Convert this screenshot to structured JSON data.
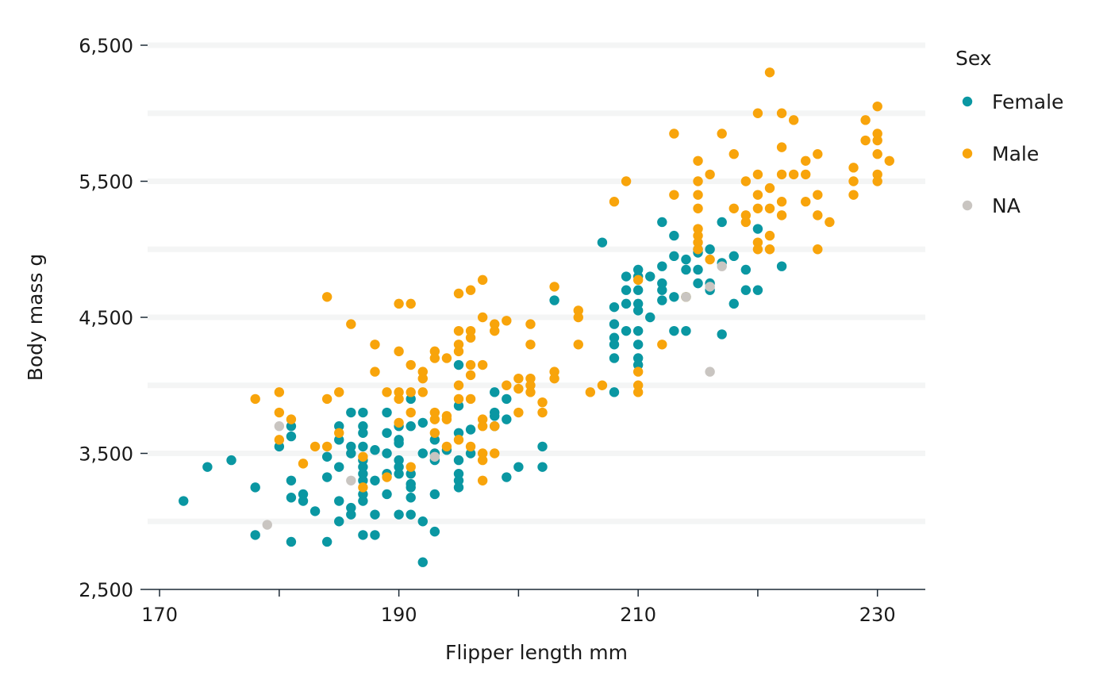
{
  "colors": {
    "Female": "#0a97a2",
    "Male": "#f8a40b",
    "NA": "#c9c5c1"
  },
  "chart_data": {
    "type": "scatter",
    "title": "",
    "xlabel": "Flipper length mm",
    "ylabel": "Body mass g",
    "xlim": [
      169,
      234
    ],
    "ylim": [
      2500,
      6500
    ],
    "x_ticks": [
      170,
      190,
      210,
      230
    ],
    "x_tick_labels": [
      "170",
      "190",
      "210",
      "230"
    ],
    "x_minor_ticks": [
      180,
      200,
      220
    ],
    "y_ticks": [
      2500,
      3500,
      4500,
      5500,
      6500
    ],
    "y_tick_labels": [
      "2,500",
      "3,500",
      "4,500",
      "5,500",
      "6,500"
    ],
    "y_gridlines": [
      3000,
      3500,
      4000,
      4500,
      5000,
      5500,
      6000,
      6500
    ],
    "legend": {
      "title": "Sex",
      "position": "right",
      "entries": [
        "Female",
        "Male",
        "NA"
      ]
    },
    "series": [
      {
        "name": "Female",
        "points": [
          [
            172,
            3150
          ],
          [
            174,
            3400
          ],
          [
            176,
            3450
          ],
          [
            178,
            3250
          ],
          [
            178,
            2900
          ],
          [
            180,
            3550
          ],
          [
            181,
            3700
          ],
          [
            181,
            3625
          ],
          [
            181,
            3300
          ],
          [
            181,
            3175
          ],
          [
            181,
            2850
          ],
          [
            182,
            3200
          ],
          [
            182,
            3150
          ],
          [
            183,
            3075
          ],
          [
            184,
            3475
          ],
          [
            184,
            3325
          ],
          [
            184,
            2850
          ],
          [
            185,
            3700
          ],
          [
            185,
            3600
          ],
          [
            185,
            3400
          ],
          [
            185,
            3150
          ],
          [
            185,
            3000
          ],
          [
            186,
            3800
          ],
          [
            186,
            3550
          ],
          [
            186,
            3500
          ],
          [
            186,
            3100
          ],
          [
            186,
            3050
          ],
          [
            187,
            3800
          ],
          [
            187,
            3700
          ],
          [
            187,
            3650
          ],
          [
            187,
            3550
          ],
          [
            187,
            3450
          ],
          [
            187,
            3400
          ],
          [
            187,
            3350
          ],
          [
            187,
            3300
          ],
          [
            187,
            3200
          ],
          [
            187,
            3150
          ],
          [
            187,
            2900
          ],
          [
            188,
            3525
          ],
          [
            188,
            3300
          ],
          [
            188,
            3050
          ],
          [
            188,
            2900
          ],
          [
            189,
            3800
          ],
          [
            189,
            3650
          ],
          [
            189,
            3500
          ],
          [
            189,
            3350
          ],
          [
            189,
            3200
          ],
          [
            190,
            3700
          ],
          [
            190,
            3600
          ],
          [
            190,
            3575
          ],
          [
            190,
            3450
          ],
          [
            190,
            3400
          ],
          [
            190,
            3350
          ],
          [
            190,
            3050
          ],
          [
            191,
            3900
          ],
          [
            191,
            3700
          ],
          [
            191,
            3350
          ],
          [
            191,
            3275
          ],
          [
            191,
            3250
          ],
          [
            191,
            3175
          ],
          [
            191,
            3050
          ],
          [
            192,
            3725
          ],
          [
            192,
            3500
          ],
          [
            192,
            3000
          ],
          [
            192,
            2700
          ],
          [
            193,
            3600
          ],
          [
            193,
            3500
          ],
          [
            193,
            3450
          ],
          [
            193,
            3200
          ],
          [
            193,
            2925
          ],
          [
            194,
            3525
          ],
          [
            195,
            4150
          ],
          [
            195,
            3850
          ],
          [
            195,
            3650
          ],
          [
            195,
            3450
          ],
          [
            195,
            3350
          ],
          [
            195,
            3300
          ],
          [
            195,
            3250
          ],
          [
            196,
            3675
          ],
          [
            196,
            3500
          ],
          [
            198,
            3950
          ],
          [
            198,
            3800
          ],
          [
            198,
            3775
          ],
          [
            198,
            3700
          ],
          [
            199,
            3900
          ],
          [
            199,
            3750
          ],
          [
            199,
            3325
          ],
          [
            200,
            3400
          ],
          [
            202,
            3550
          ],
          [
            202,
            3400
          ],
          [
            203,
            4625
          ],
          [
            208,
            4575
          ],
          [
            208,
            4450
          ],
          [
            208,
            4350
          ],
          [
            208,
            4300
          ],
          [
            208,
            4200
          ],
          [
            208,
            3950
          ],
          [
            209,
            4800
          ],
          [
            209,
            4700
          ],
          [
            209,
            4600
          ],
          [
            209,
            4400
          ],
          [
            210,
            4850
          ],
          [
            210,
            4800
          ],
          [
            210,
            4700
          ],
          [
            210,
            4600
          ],
          [
            210,
            4550
          ],
          [
            210,
            4400
          ],
          [
            210,
            4300
          ],
          [
            210,
            4200
          ],
          [
            210,
            4150
          ],
          [
            211,
            4800
          ],
          [
            211,
            4500
          ],
          [
            212,
            5200
          ],
          [
            212,
            4875
          ],
          [
            212,
            4750
          ],
          [
            212,
            4700
          ],
          [
            212,
            4625
          ],
          [
            213,
            5100
          ],
          [
            213,
            4950
          ],
          [
            213,
            4650
          ],
          [
            213,
            4400
          ],
          [
            214,
            4925
          ],
          [
            214,
            4850
          ],
          [
            214,
            4400
          ],
          [
            215,
            5000
          ],
          [
            215,
            4975
          ],
          [
            215,
            4850
          ],
          [
            215,
            4750
          ],
          [
            216,
            5000
          ],
          [
            216,
            4750
          ],
          [
            216,
            4700
          ],
          [
            217,
            5200
          ],
          [
            217,
            4900
          ],
          [
            217,
            4375
          ],
          [
            218,
            4950
          ],
          [
            218,
            4600
          ],
          [
            219,
            4850
          ],
          [
            219,
            4700
          ],
          [
            220,
            5150
          ],
          [
            220,
            4700
          ],
          [
            222,
            4875
          ],
          [
            207,
            5050
          ],
          [
            214,
            4650
          ]
        ]
      },
      {
        "name": "Male",
        "points": [
          [
            178,
            3900
          ],
          [
            180,
            3950
          ],
          [
            180,
            3800
          ],
          [
            180,
            3600
          ],
          [
            181,
            3750
          ],
          [
            182,
            3425
          ],
          [
            183,
            3550
          ],
          [
            184,
            4650
          ],
          [
            184,
            3900
          ],
          [
            184,
            3550
          ],
          [
            185,
            3950
          ],
          [
            185,
            3650
          ],
          [
            186,
            4450
          ],
          [
            187,
            3475
          ],
          [
            187,
            3250
          ],
          [
            188,
            4300
          ],
          [
            188,
            4100
          ],
          [
            189,
            3950
          ],
          [
            189,
            3325
          ],
          [
            190,
            4600
          ],
          [
            190,
            4250
          ],
          [
            190,
            3950
          ],
          [
            190,
            3900
          ],
          [
            190,
            3725
          ],
          [
            191,
            4600
          ],
          [
            191,
            4150
          ],
          [
            191,
            3950
          ],
          [
            191,
            3800
          ],
          [
            191,
            3400
          ],
          [
            192,
            4100
          ],
          [
            192,
            4050
          ],
          [
            192,
            3950
          ],
          [
            193,
            4250
          ],
          [
            193,
            4200
          ],
          [
            193,
            3800
          ],
          [
            193,
            3750
          ],
          [
            193,
            3650
          ],
          [
            194,
            4200
          ],
          [
            194,
            3775
          ],
          [
            194,
            3750
          ],
          [
            194,
            3550
          ],
          [
            195,
            4675
          ],
          [
            195,
            4400
          ],
          [
            195,
            4300
          ],
          [
            195,
            4250
          ],
          [
            195,
            4000
          ],
          [
            195,
            3900
          ],
          [
            195,
            3600
          ],
          [
            196,
            4700
          ],
          [
            196,
            4400
          ],
          [
            196,
            4350
          ],
          [
            196,
            4150
          ],
          [
            196,
            4075
          ],
          [
            196,
            3900
          ],
          [
            196,
            3550
          ],
          [
            197,
            4775
          ],
          [
            197,
            4500
          ],
          [
            197,
            4150
          ],
          [
            197,
            3750
          ],
          [
            197,
            3700
          ],
          [
            197,
            3500
          ],
          [
            197,
            3450
          ],
          [
            197,
            3300
          ],
          [
            198,
            4450
          ],
          [
            198,
            4400
          ],
          [
            198,
            3700
          ],
          [
            198,
            3500
          ],
          [
            199,
            4475
          ],
          [
            199,
            4000
          ],
          [
            200,
            4050
          ],
          [
            200,
            3975
          ],
          [
            200,
            3800
          ],
          [
            201,
            4450
          ],
          [
            201,
            4300
          ],
          [
            201,
            4050
          ],
          [
            201,
            4000
          ],
          [
            201,
            3950
          ],
          [
            202,
            3875
          ],
          [
            202,
            3800
          ],
          [
            203,
            4725
          ],
          [
            203,
            4100
          ],
          [
            203,
            4050
          ],
          [
            205,
            4550
          ],
          [
            205,
            4500
          ],
          [
            205,
            4300
          ],
          [
            206,
            3950
          ],
          [
            207,
            4000
          ],
          [
            208,
            5350
          ],
          [
            209,
            5500
          ],
          [
            210,
            4775
          ],
          [
            210,
            4100
          ],
          [
            210,
            4000
          ],
          [
            210,
            3950
          ],
          [
            212,
            4300
          ],
          [
            213,
            5850
          ],
          [
            213,
            5400
          ],
          [
            214,
            4650
          ],
          [
            215,
            5650
          ],
          [
            215,
            5500
          ],
          [
            215,
            5400
          ],
          [
            215,
            5300
          ],
          [
            215,
            5150
          ],
          [
            215,
            5100
          ],
          [
            215,
            5050
          ],
          [
            215,
            5000
          ],
          [
            216,
            5550
          ],
          [
            216,
            4925
          ],
          [
            217,
            5850
          ],
          [
            218,
            5700
          ],
          [
            218,
            5300
          ],
          [
            219,
            5500
          ],
          [
            219,
            5250
          ],
          [
            219,
            5200
          ],
          [
            220,
            6000
          ],
          [
            220,
            5550
          ],
          [
            220,
            5400
          ],
          [
            220,
            5300
          ],
          [
            220,
            5050
          ],
          [
            220,
            5000
          ],
          [
            221,
            6300
          ],
          [
            221,
            5450
          ],
          [
            221,
            5300
          ],
          [
            221,
            5100
          ],
          [
            221,
            5000
          ],
          [
            222,
            6000
          ],
          [
            222,
            5750
          ],
          [
            222,
            5550
          ],
          [
            222,
            5350
          ],
          [
            222,
            5250
          ],
          [
            223,
            5950
          ],
          [
            223,
            5550
          ],
          [
            224,
            5650
          ],
          [
            224,
            5550
          ],
          [
            224,
            5350
          ],
          [
            225,
            5700
          ],
          [
            225,
            5400
          ],
          [
            225,
            5250
          ],
          [
            225,
            5000
          ],
          [
            226,
            5200
          ],
          [
            228,
            5600
          ],
          [
            228,
            5500
          ],
          [
            228,
            5400
          ],
          [
            229,
            5950
          ],
          [
            229,
            5800
          ],
          [
            230,
            6050
          ],
          [
            230,
            5850
          ],
          [
            230,
            5800
          ],
          [
            230,
            5700
          ],
          [
            230,
            5550
          ],
          [
            230,
            5500
          ],
          [
            231,
            5650
          ]
        ]
      },
      {
        "name": "NA",
        "points": [
          [
            179,
            2975
          ],
          [
            180,
            3700
          ],
          [
            186,
            3300
          ],
          [
            193,
            3475
          ],
          [
            214,
            4650
          ],
          [
            216,
            4725
          ],
          [
            216,
            4100
          ],
          [
            217,
            4875
          ]
        ]
      }
    ]
  }
}
